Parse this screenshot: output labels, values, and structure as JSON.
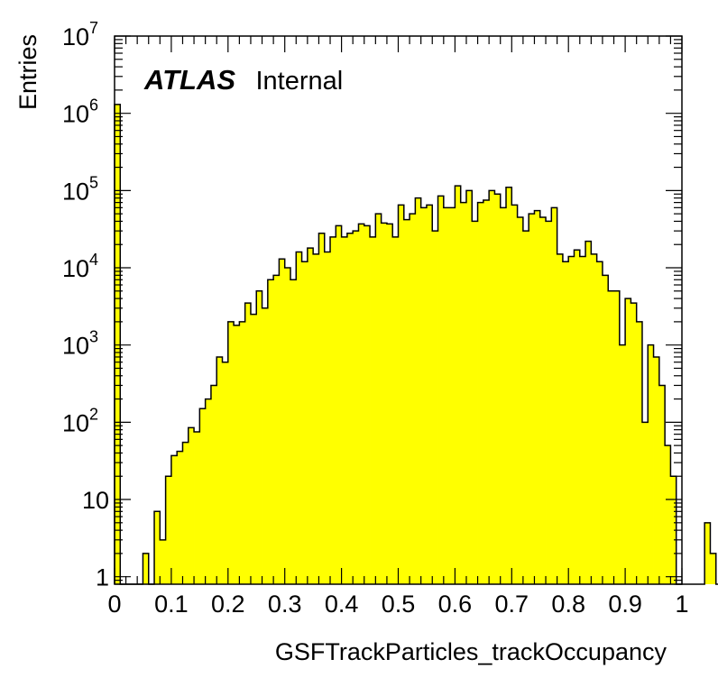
{
  "chart_data": {
    "type": "bar",
    "histogram": true,
    "xlabel": "GSFTrackParticles_trackOccupancy",
    "ylabel": "Entries",
    "xlim": [
      0,
      1
    ],
    "ylim": [
      0.8,
      10000000
    ],
    "log_y": true,
    "bin_width": 0.01,
    "fill_color": "#ffff00",
    "edge_color": "#000000",
    "x_ticks": [
      "0",
      "0.1",
      "0.2",
      "0.3",
      "0.4",
      "0.5",
      "0.6",
      "0.7",
      "0.8",
      "0.9",
      "1"
    ],
    "y_ticks": [
      {
        "value": 1,
        "base": "1",
        "exp": ""
      },
      {
        "value": 10,
        "base": "10",
        "exp": ""
      },
      {
        "value": 100,
        "base": "10",
        "exp": "2"
      },
      {
        "value": 1000,
        "base": "10",
        "exp": "3"
      },
      {
        "value": 10000,
        "base": "10",
        "exp": "4"
      },
      {
        "value": 100000,
        "base": "10",
        "exp": "5"
      },
      {
        "value": 1000000,
        "base": "10",
        "exp": "6"
      },
      {
        "value": 10000000,
        "base": "10",
        "exp": "7"
      }
    ],
    "annotation": {
      "bold": "ATLAS",
      "text": "Internal"
    },
    "values": [
      1300000,
      0,
      0,
      0,
      0,
      2,
      0,
      7,
      3,
      20,
      37,
      42,
      55,
      85,
      75,
      150,
      200,
      300,
      700,
      600,
      2000,
      1800,
      2000,
      3500,
      2500,
      5000,
      3000,
      7000,
      8000,
      13000,
      10000,
      7000,
      16000,
      12000,
      18000,
      15000,
      28000,
      16000,
      25000,
      35000,
      25000,
      28000,
      30000,
      37000,
      35000,
      25000,
      50000,
      38000,
      37000,
      25000,
      65000,
      42000,
      50000,
      80000,
      60000,
      65000,
      30000,
      85000,
      60000,
      60000,
      115000,
      70000,
      100000,
      40000,
      70000,
      75000,
      100000,
      90000,
      60000,
      110000,
      65000,
      45000,
      30000,
      50000,
      55000,
      45000,
      40000,
      60000,
      15000,
      12000,
      14000,
      17000,
      14000,
      22000,
      15000,
      12000,
      8000,
      5000,
      5000,
      1000,
      4000,
      3500,
      2000,
      100,
      1000,
      700,
      300,
      50,
      20,
      0,
      0,
      0,
      0,
      0,
      5,
      2,
      0
    ]
  }
}
